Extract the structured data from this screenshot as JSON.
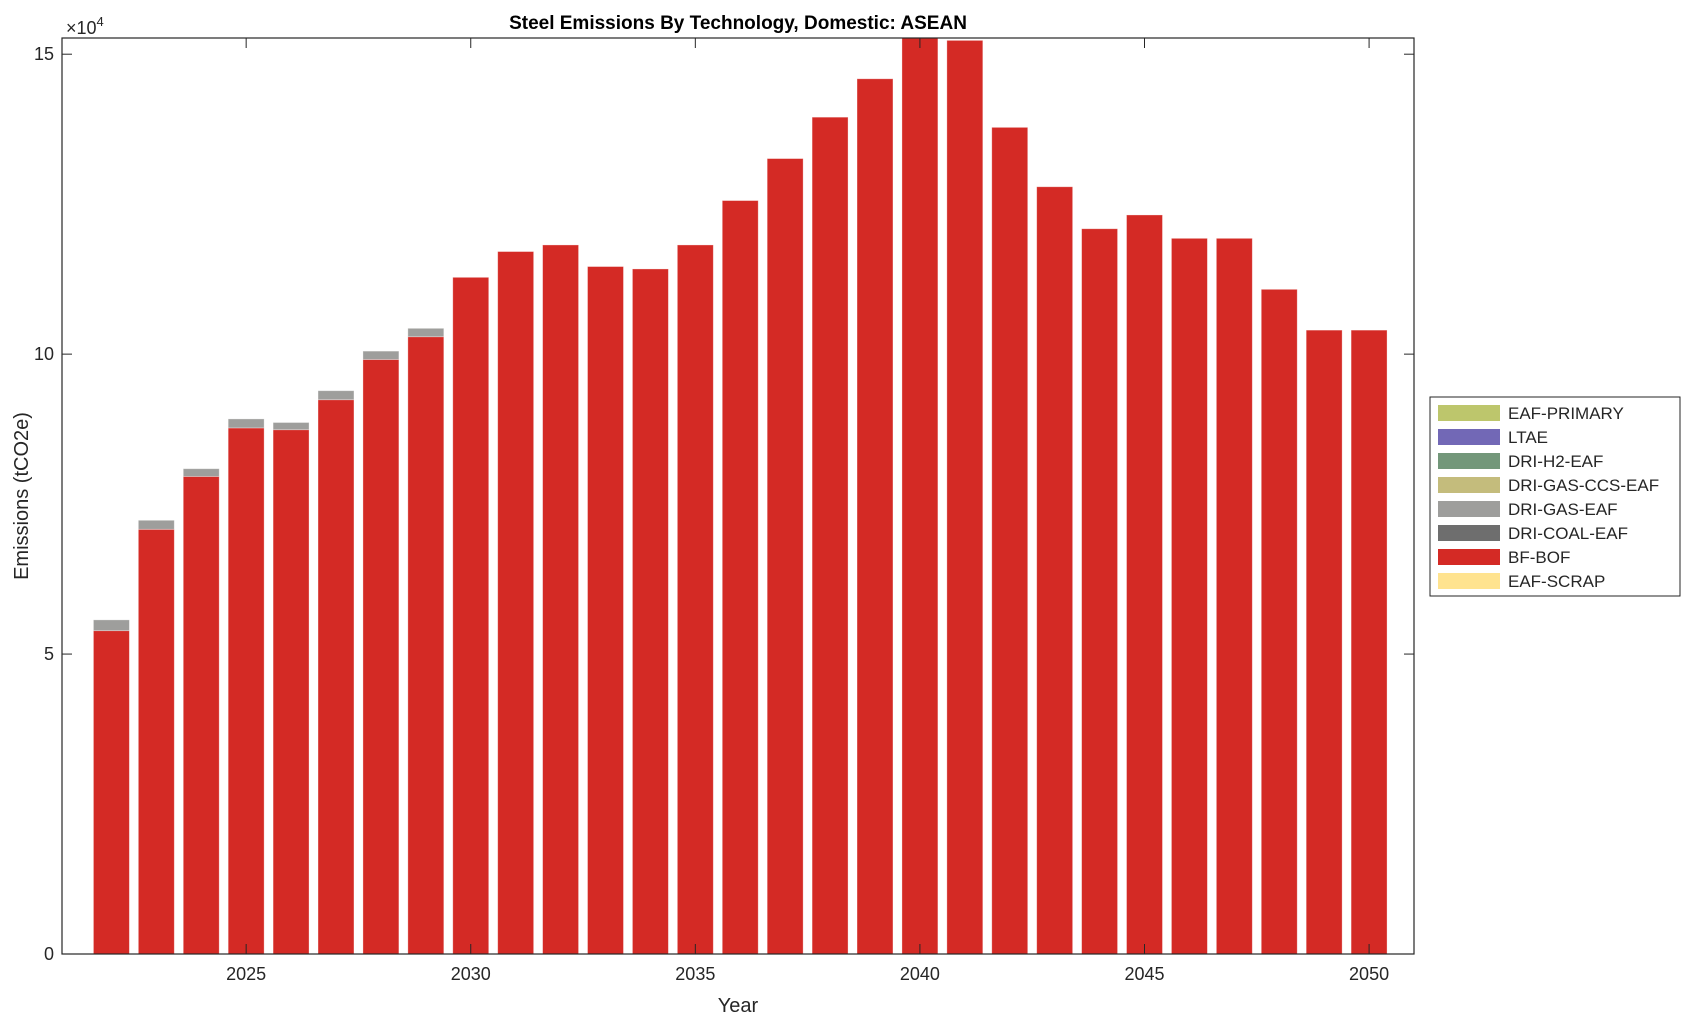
{
  "chart_data": {
    "type": "bar",
    "stacked": true,
    "title": "Steel Emissions By Technology, Domestic: ASEAN",
    "xlabel": "Year",
    "ylabel": "Emissions (tCO2e)",
    "y_exponent_label": "×10",
    "y_exponent": "4",
    "y_scale": 10000,
    "xlim": [
      2020.9,
      2051
    ],
    "ylim": [
      0,
      152700
    ],
    "xticks": [
      2025,
      2030,
      2035,
      2040,
      2045,
      2050
    ],
    "xtick_labels": [
      "2025",
      "2030",
      "2035",
      "2040",
      "2045",
      "2050"
    ],
    "yticks": [
      0,
      50000,
      100000,
      150000
    ],
    "ytick_labels": [
      "0",
      "5",
      "10",
      "15"
    ],
    "grid": false,
    "legend_position": "outside-right",
    "categories": [
      2022,
      2023,
      2024,
      2025,
      2026,
      2027,
      2028,
      2029,
      2030,
      2031,
      2032,
      2033,
      2034,
      2035,
      2036,
      2037,
      2038,
      2039,
      2040,
      2041,
      2042,
      2043,
      2044,
      2045,
      2046,
      2047,
      2048,
      2049,
      2050
    ],
    "series": [
      {
        "name": "EAF-SCRAP",
        "color": "#FFE38F",
        "values": [
          0,
          0,
          0,
          0,
          0,
          0,
          0,
          0,
          0,
          0,
          0,
          0,
          0,
          0,
          0,
          0,
          0,
          0,
          0,
          0,
          0,
          0,
          0,
          0,
          0,
          0,
          0,
          0,
          0
        ]
      },
      {
        "name": "BF-BOF",
        "color": "#D42A25",
        "values": [
          53900,
          70800,
          79600,
          87700,
          87400,
          92400,
          99100,
          102900,
          112800,
          117100,
          118200,
          114600,
          114200,
          118200,
          125600,
          132600,
          139500,
          145900,
          153500,
          152300,
          137800,
          127900,
          120900,
          123200,
          119300,
          119300,
          110800,
          104000,
          104000
        ]
      },
      {
        "name": "DRI-COAL-EAF",
        "color": "#6E6E6E",
        "values": [
          0,
          0,
          0,
          0,
          0,
          0,
          0,
          0,
          0,
          0,
          0,
          0,
          0,
          0,
          0,
          0,
          0,
          0,
          0,
          0,
          0,
          0,
          0,
          0,
          0,
          0,
          0,
          0,
          0
        ]
      },
      {
        "name": "DRI-GAS-EAF",
        "color": "#9E9E9C",
        "values": [
          1800,
          1500,
          1300,
          1500,
          1200,
          1500,
          1400,
          1400,
          0,
          0,
          0,
          0,
          0,
          0,
          0,
          0,
          0,
          0,
          0,
          0,
          0,
          0,
          0,
          0,
          0,
          0,
          0,
          0,
          0
        ]
      },
      {
        "name": "DRI-GAS-CCS-EAF",
        "color": "#C4BC7C",
        "values": [
          0,
          0,
          0,
          0,
          0,
          0,
          0,
          0,
          0,
          0,
          0,
          0,
          0,
          0,
          0,
          0,
          0,
          0,
          0,
          0,
          0,
          0,
          0,
          0,
          0,
          0,
          0,
          0,
          0
        ]
      },
      {
        "name": "DRI-H2-EAF",
        "color": "#73977A",
        "values": [
          0,
          0,
          0,
          0,
          0,
          0,
          0,
          0,
          0,
          0,
          0,
          0,
          0,
          0,
          0,
          0,
          0,
          0,
          0,
          0,
          0,
          0,
          0,
          0,
          0,
          0,
          0,
          0,
          0
        ]
      },
      {
        "name": "LTAE",
        "color": "#7268B6",
        "values": [
          0,
          0,
          0,
          0,
          0,
          0,
          0,
          0,
          0,
          0,
          0,
          0,
          0,
          0,
          0,
          0,
          0,
          0,
          0,
          0,
          0,
          0,
          0,
          0,
          0,
          0,
          0,
          0,
          0
        ]
      },
      {
        "name": "EAF-PRIMARY",
        "color": "#BDC66C",
        "values": [
          0,
          0,
          0,
          0,
          0,
          0,
          0,
          0,
          0,
          0,
          0,
          0,
          0,
          0,
          0,
          0,
          0,
          0,
          0,
          0,
          0,
          0,
          0,
          0,
          0,
          0,
          0,
          0,
          0
        ]
      }
    ],
    "legend_order": [
      "EAF-PRIMARY",
      "LTAE",
      "DRI-H2-EAF",
      "DRI-GAS-CCS-EAF",
      "DRI-GAS-EAF",
      "DRI-COAL-EAF",
      "BF-BOF",
      "EAF-SCRAP"
    ]
  }
}
